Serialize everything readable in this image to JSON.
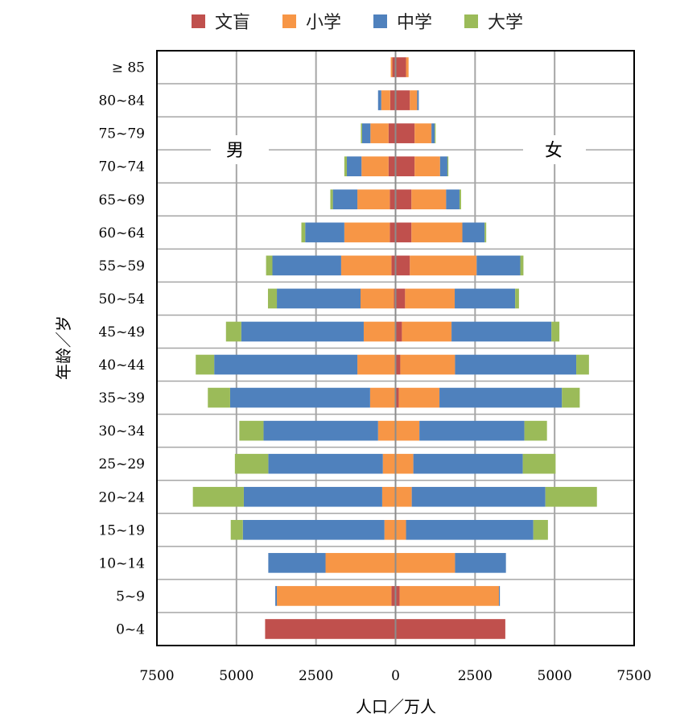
{
  "chart_data": {
    "type": "bar",
    "subtype": "population-pyramid",
    "xlabel": "人口／万人",
    "ylabel": "年龄／岁",
    "xlim": [
      -7500,
      7500
    ],
    "x_ticks": [
      -7500,
      -5000,
      -2500,
      0,
      2500,
      5000,
      7500
    ],
    "x_tick_labels": [
      "7500",
      "5000",
      "2500",
      "0",
      "2500",
      "5000",
      "7500"
    ],
    "grid": true,
    "legend_position": "top",
    "left_label": "男",
    "right_label": "女",
    "categories": [
      "0~4",
      "5~9",
      "10~14",
      "15~19",
      "20~24",
      "25~29",
      "30~34",
      "35~39",
      "40~44",
      "45~49",
      "50~54",
      "55~59",
      "60~64",
      "65~69",
      "70~74",
      "75~79",
      "80~84",
      "≥ 85"
    ],
    "series": [
      {
        "name": "文盲",
        "color": "#c0504d",
        "male": [
          4100,
          130,
          0,
          0,
          0,
          0,
          0,
          0,
          0,
          0,
          50,
          130,
          180,
          180,
          220,
          220,
          170,
          100
        ],
        "female": [
          3450,
          130,
          0,
          0,
          0,
          0,
          0,
          100,
          150,
          200,
          300,
          450,
          500,
          500,
          600,
          600,
          450,
          330
        ]
      },
      {
        "name": "小学",
        "color": "#f79646",
        "male": [
          0,
          3600,
          2200,
          350,
          420,
          400,
          550,
          800,
          1200,
          1000,
          1050,
          1580,
          1430,
          1020,
          850,
          570,
          280,
          50
        ],
        "female": [
          0,
          3120,
          1870,
          330,
          510,
          560,
          750,
          1280,
          1720,
          1560,
          1560,
          2100,
          1600,
          1090,
          800,
          530,
          230,
          80
        ]
      },
      {
        "name": "中学",
        "color": "#4f81bd",
        "male": [
          0,
          50,
          1800,
          4450,
          4350,
          3600,
          3600,
          4400,
          4500,
          3850,
          2630,
          2160,
          1230,
          770,
          460,
          260,
          100,
          0
        ],
        "female": [
          0,
          30,
          1600,
          4000,
          4200,
          3440,
          3300,
          3850,
          3810,
          3140,
          1900,
          1370,
          700,
          420,
          230,
          100,
          50,
          0
        ],
        "tip": true
      },
      {
        "name": "大学",
        "color": "#9bbb59",
        "male": [
          0,
          0,
          0,
          380,
          1600,
          1050,
          760,
          700,
          580,
          480,
          280,
          200,
          120,
          80,
          80,
          40,
          0,
          0
        ],
        "female": [
          0,
          0,
          0,
          460,
          1620,
          1030,
          710,
          560,
          400,
          250,
          120,
          100,
          50,
          50,
          30,
          30,
          0,
          0
        ]
      }
    ]
  }
}
